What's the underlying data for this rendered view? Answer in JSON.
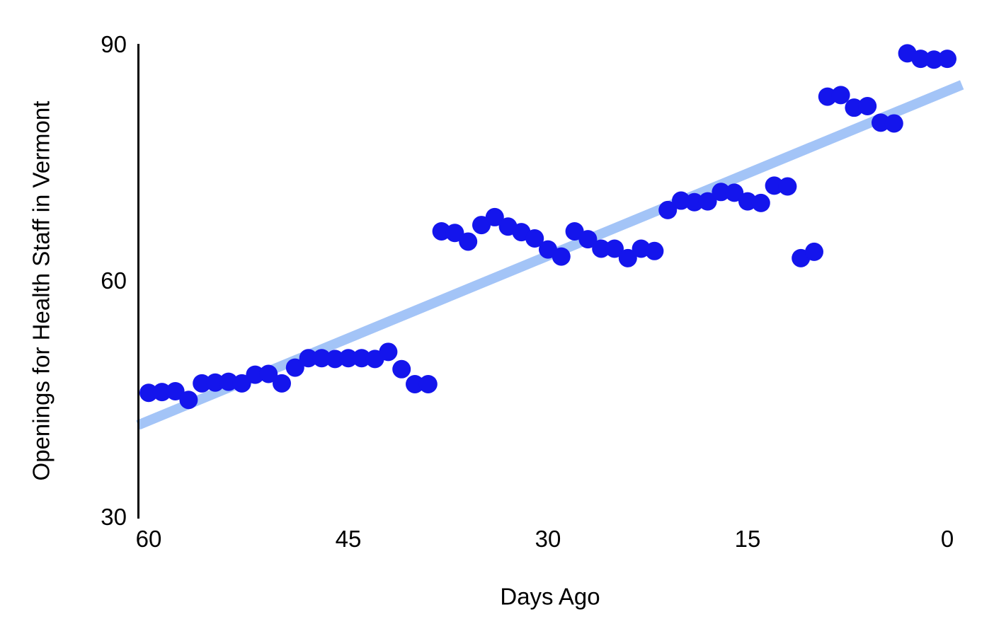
{
  "chart_data": {
    "type": "scatter",
    "title": "",
    "xlabel": "Days Ago",
    "ylabel": "Openings for Health Staff in Vermont",
    "x_axis_reversed": true,
    "xlim": [
      61,
      -1.5
    ],
    "ylim": [
      30,
      90
    ],
    "x_ticks": [
      60,
      45,
      30,
      15,
      0
    ],
    "y_ticks": [
      90,
      60,
      30
    ],
    "grid": false,
    "legend": false,
    "colors": {
      "point": "#1415ec",
      "trendline": "#a3c4f7",
      "axis": "#000000",
      "text": "#000000"
    },
    "x": [
      60,
      59,
      58,
      57,
      56,
      55,
      54,
      53,
      52,
      51,
      50,
      49,
      48,
      47,
      46,
      45,
      44,
      43,
      42,
      41,
      40,
      39,
      38,
      37,
      36,
      35,
      34,
      33,
      32,
      31,
      30,
      29,
      28,
      27,
      26,
      25,
      24,
      23,
      22,
      21,
      20,
      19,
      18,
      17,
      16,
      15,
      14,
      13,
      12,
      11,
      10,
      9,
      8,
      7,
      6,
      5,
      4,
      3,
      2,
      1,
      0
    ],
    "y": [
      45.7,
      45.8,
      45.9,
      44.8,
      46.9,
      47.0,
      47.1,
      46.9,
      48.0,
      48.1,
      46.9,
      48.9,
      50.1,
      50.1,
      50.0,
      50.1,
      50.1,
      50.0,
      50.9,
      48.7,
      46.8,
      46.8,
      66.2,
      66.0,
      64.9,
      67.0,
      68.0,
      66.8,
      66.1,
      65.3,
      63.9,
      63.0,
      66.2,
      65.2,
      64.0,
      64.0,
      62.8,
      64.0,
      63.7,
      68.9,
      70.1,
      69.9,
      70.0,
      71.2,
      71.1,
      70.0,
      69.8,
      72.0,
      71.9,
      62.8,
      63.6,
      83.3,
      83.5,
      81.9,
      82.1,
      80.0,
      79.9,
      88.8,
      88.1,
      88.0,
      88.1
    ],
    "trendline": {
      "x1": 60.8,
      "y1": 41.6,
      "x2": -1.1,
      "y2": 84.8
    }
  }
}
